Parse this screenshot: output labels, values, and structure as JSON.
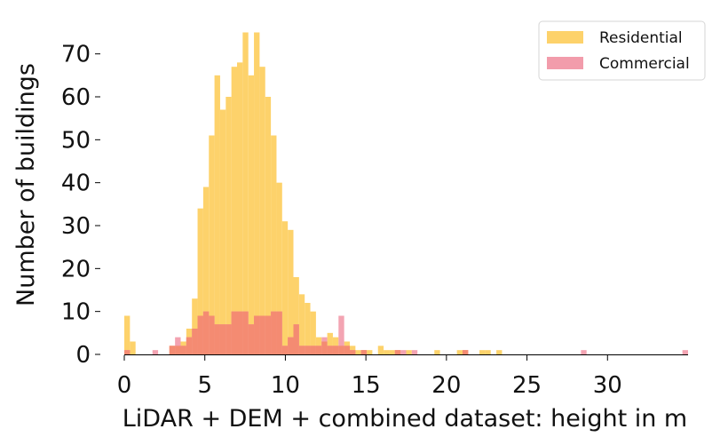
{
  "chart_data": {
    "type": "bar",
    "xlabel": "LiDAR + DEM + combined dataset: height in m",
    "ylabel": "Number of buildings",
    "xlim": [
      0,
      35
    ],
    "ylim": [
      0,
      78
    ],
    "bin_width": 0.35,
    "xticks": [
      0,
      5,
      10,
      15,
      20,
      25,
      30
    ],
    "yticks": [
      0,
      10,
      20,
      30,
      40,
      50,
      60,
      70
    ],
    "grid": false,
    "legend_position": "top-right",
    "series": [
      {
        "name": "Residential",
        "color": "#FDD26B",
        "bins": [
          {
            "x": 0.0,
            "y": 9
          },
          {
            "x": 0.35,
            "y": 3
          },
          {
            "x": 2.8,
            "y": 2
          },
          {
            "x": 3.15,
            "y": 2
          },
          {
            "x": 3.5,
            "y": 3
          },
          {
            "x": 3.85,
            "y": 6
          },
          {
            "x": 4.2,
            "y": 13
          },
          {
            "x": 4.55,
            "y": 34
          },
          {
            "x": 4.9,
            "y": 39
          },
          {
            "x": 5.25,
            "y": 51
          },
          {
            "x": 5.6,
            "y": 65
          },
          {
            "x": 5.95,
            "y": 57
          },
          {
            "x": 6.3,
            "y": 60
          },
          {
            "x": 6.65,
            "y": 67
          },
          {
            "x": 7.0,
            "y": 68
          },
          {
            "x": 7.35,
            "y": 75
          },
          {
            "x": 7.7,
            "y": 65
          },
          {
            "x": 8.05,
            "y": 75
          },
          {
            "x": 8.4,
            "y": 67
          },
          {
            "x": 8.75,
            "y": 60
          },
          {
            "x": 9.1,
            "y": 51
          },
          {
            "x": 9.45,
            "y": 40
          },
          {
            "x": 9.8,
            "y": 31
          },
          {
            "x": 10.15,
            "y": 29
          },
          {
            "x": 10.5,
            "y": 18
          },
          {
            "x": 10.85,
            "y": 14
          },
          {
            "x": 11.2,
            "y": 12
          },
          {
            "x": 11.55,
            "y": 10
          },
          {
            "x": 11.9,
            "y": 4
          },
          {
            "x": 12.25,
            "y": 3
          },
          {
            "x": 12.6,
            "y": 5
          },
          {
            "x": 12.95,
            "y": 4
          },
          {
            "x": 13.3,
            "y": 2
          },
          {
            "x": 13.65,
            "y": 3
          },
          {
            "x": 14.0,
            "y": 2
          },
          {
            "x": 14.35,
            "y": 1
          },
          {
            "x": 14.7,
            "y": 1
          },
          {
            "x": 15.05,
            "y": 1
          },
          {
            "x": 15.75,
            "y": 2
          },
          {
            "x": 16.1,
            "y": 1
          },
          {
            "x": 16.45,
            "y": 1
          },
          {
            "x": 16.8,
            "y": 1
          },
          {
            "x": 17.5,
            "y": 1
          },
          {
            "x": 19.25,
            "y": 1
          },
          {
            "x": 20.65,
            "y": 1
          },
          {
            "x": 21.0,
            "y": 1
          },
          {
            "x": 22.05,
            "y": 1
          },
          {
            "x": 22.4,
            "y": 1
          },
          {
            "x": 23.1,
            "y": 1
          }
        ]
      },
      {
        "name": "Commercial",
        "color": "#F29CAB",
        "bins": [
          {
            "x": 0.0,
            "y": 1
          },
          {
            "x": 1.75,
            "y": 1
          },
          {
            "x": 2.8,
            "y": 2
          },
          {
            "x": 3.15,
            "y": 4
          },
          {
            "x": 3.5,
            "y": 2
          },
          {
            "x": 3.85,
            "y": 4
          },
          {
            "x": 4.2,
            "y": 6
          },
          {
            "x": 4.55,
            "y": 9
          },
          {
            "x": 4.9,
            "y": 10
          },
          {
            "x": 5.25,
            "y": 9
          },
          {
            "x": 5.6,
            "y": 7
          },
          {
            "x": 5.95,
            "y": 7
          },
          {
            "x": 6.3,
            "y": 7
          },
          {
            "x": 6.65,
            "y": 10
          },
          {
            "x": 7.0,
            "y": 10
          },
          {
            "x": 7.35,
            "y": 10
          },
          {
            "x": 7.7,
            "y": 7
          },
          {
            "x": 8.05,
            "y": 9
          },
          {
            "x": 8.4,
            "y": 9
          },
          {
            "x": 8.75,
            "y": 9
          },
          {
            "x": 9.1,
            "y": 10
          },
          {
            "x": 9.45,
            "y": 10
          },
          {
            "x": 9.8,
            "y": 2
          },
          {
            "x": 10.15,
            "y": 4
          },
          {
            "x": 10.5,
            "y": 7
          },
          {
            "x": 10.85,
            "y": 2
          },
          {
            "x": 11.2,
            "y": 2
          },
          {
            "x": 11.55,
            "y": 2
          },
          {
            "x": 11.9,
            "y": 2
          },
          {
            "x": 12.25,
            "y": 4
          },
          {
            "x": 12.6,
            "y": 2
          },
          {
            "x": 12.95,
            "y": 2
          },
          {
            "x": 13.3,
            "y": 9
          },
          {
            "x": 13.65,
            "y": 2
          },
          {
            "x": 14.0,
            "y": 1
          },
          {
            "x": 14.7,
            "y": 1
          },
          {
            "x": 16.8,
            "y": 1
          },
          {
            "x": 17.15,
            "y": 1
          },
          {
            "x": 17.85,
            "y": 1
          },
          {
            "x": 21.0,
            "y": 1
          },
          {
            "x": 28.35,
            "y": 1
          },
          {
            "x": 34.65,
            "y": 1
          }
        ]
      }
    ]
  }
}
